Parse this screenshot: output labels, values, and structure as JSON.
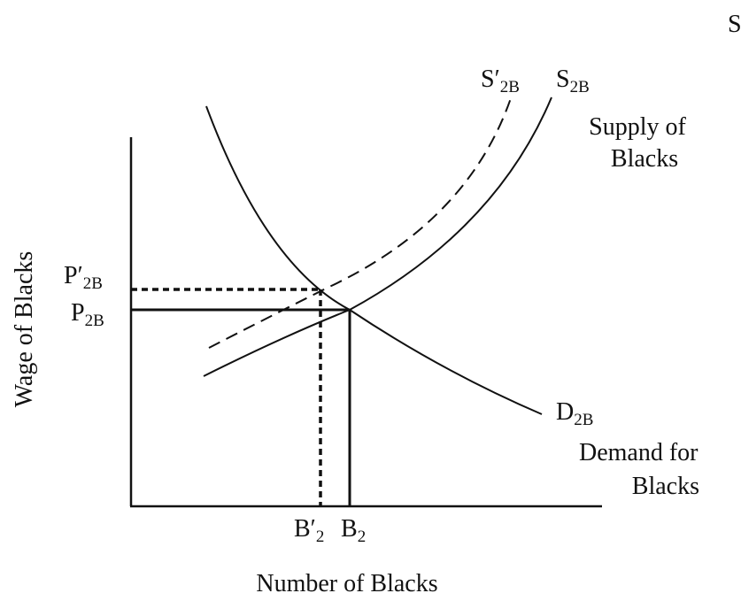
{
  "corner_text": "S",
  "supply_shifted": {
    "main": "S′",
    "sub": "2B"
  },
  "supply": {
    "main": "S",
    "sub": "2B"
  },
  "supply_caption": [
    "Supply of",
    "Blacks"
  ],
  "demand": {
    "main": "D",
    "sub": "2B"
  },
  "demand_caption": [
    "Demand for",
    "Blacks"
  ],
  "price_shifted": {
    "main": "P′",
    "sub": "2B"
  },
  "price": {
    "main": "P",
    "sub": "2B"
  },
  "y_axis_label": "Wage of Blacks",
  "quantity_shifted": {
    "main": "B′",
    "sub": "2"
  },
  "quantity": {
    "main": "B",
    "sub": "2"
  },
  "x_axis_label": "Number of Blacks"
}
